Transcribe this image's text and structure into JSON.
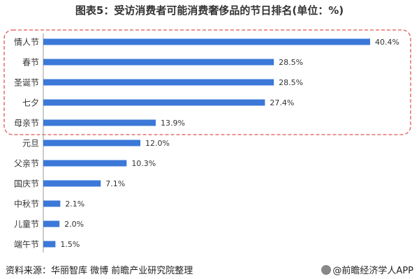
{
  "title": "图表5：受访消费者可能消费奢侈品的节日排名(单位：%)",
  "source": "资料来源：华丽智库 微博 前瞻产业研究院整理",
  "brand": "@前瞻经济学人APP",
  "colors": {
    "bar": "#3b78d8",
    "highlight_border": "#e05555",
    "text": "#333333",
    "axis": "#999999"
  },
  "chart_data": {
    "type": "bar",
    "orientation": "horizontal",
    "title": "图表5：受访消费者可能消费奢侈品的节日排名(单位：%)",
    "categories": [
      "情人节",
      "春节",
      "圣诞节",
      "七夕",
      "母亲节",
      "元旦",
      "父亲节",
      "国庆节",
      "中秋节",
      "儿童节",
      "端午节"
    ],
    "values": [
      40.4,
      28.5,
      28.5,
      27.4,
      13.9,
      12.0,
      10.3,
      7.1,
      2.1,
      2.0,
      1.5
    ],
    "value_labels": [
      "40.4%",
      "28.5%",
      "28.5%",
      "27.4%",
      "13.9%",
      "12.0%",
      "10.3%",
      "7.1%",
      "2.1%",
      "2.0%",
      "1.5%"
    ],
    "xlim": [
      0,
      40.4
    ],
    "grid": false,
    "legend": "none",
    "highlighted_categories": [
      "情人节",
      "春节",
      "圣诞节",
      "七夕",
      "母亲节"
    ]
  }
}
